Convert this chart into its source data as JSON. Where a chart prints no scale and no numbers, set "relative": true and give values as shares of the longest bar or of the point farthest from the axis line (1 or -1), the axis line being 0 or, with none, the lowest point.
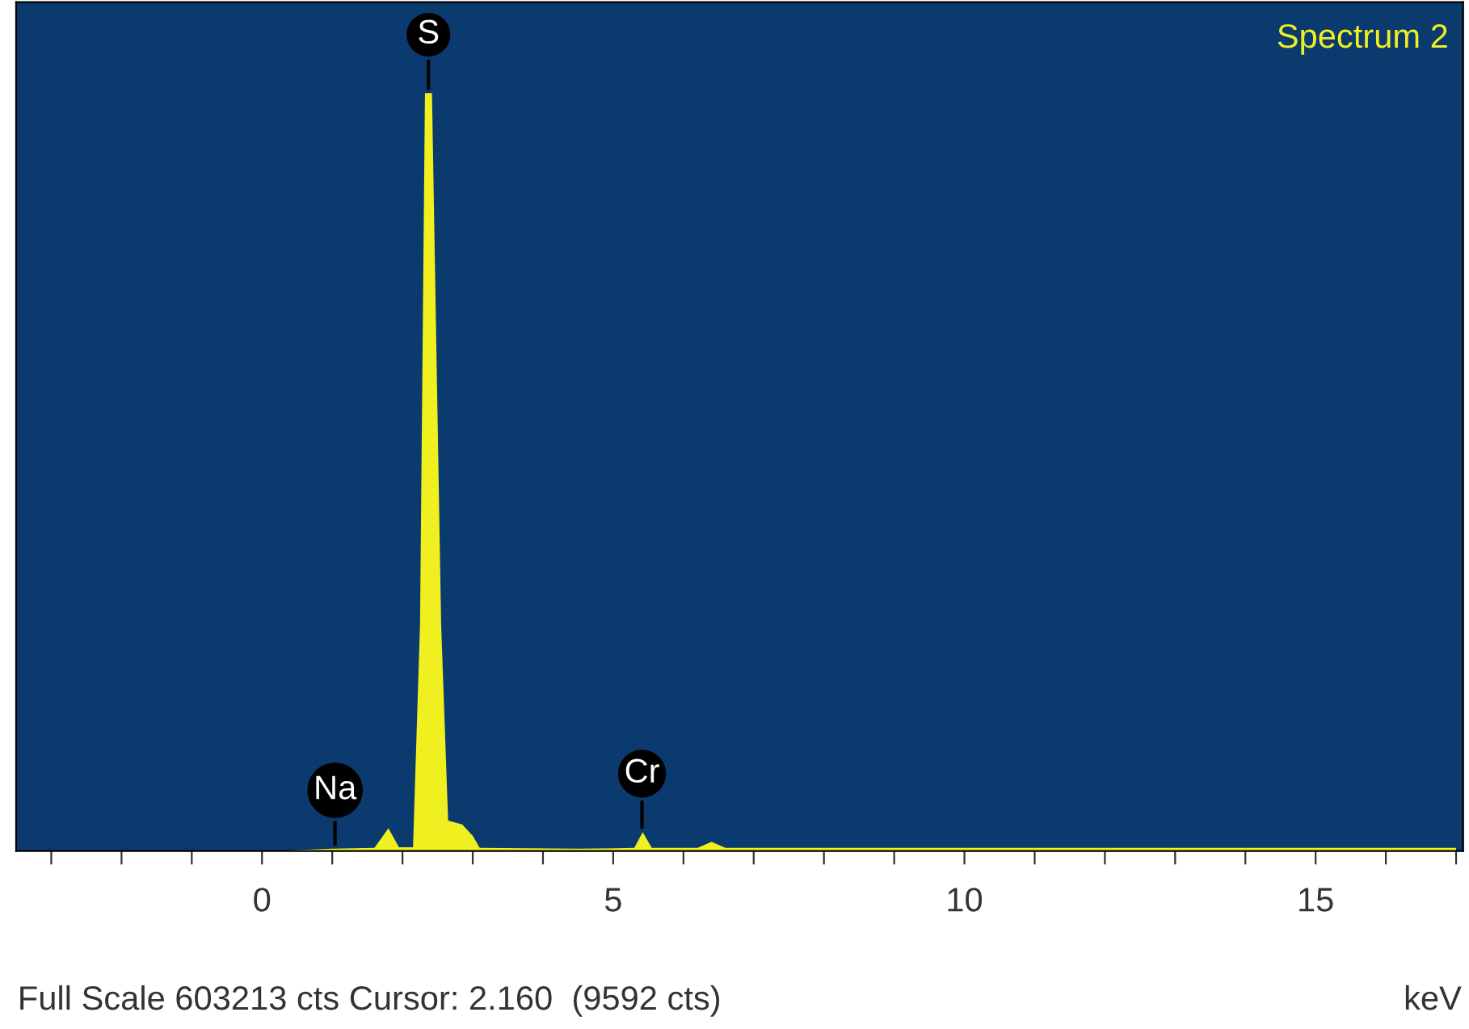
{
  "chart_data": {
    "type": "area",
    "title": "Spectrum 2",
    "xlabel": "keV",
    "relative": true,
    "x": [
      0.2,
      1.0,
      1.6,
      1.8,
      1.95,
      2.15,
      2.25,
      2.32,
      2.42,
      2.55,
      2.65,
      2.85,
      3.0,
      3.1,
      4.5,
      5.3,
      5.42,
      5.55,
      6.2,
      6.4,
      6.6,
      7.5,
      17.0
    ],
    "series": [
      {
        "color": "#f0f020",
        "values": [
          0,
          0.003,
          0.004,
          0.03,
          0.005,
          0.005,
          0.3,
          1.0,
          1.0,
          0.3,
          0.04,
          0.035,
          0.02,
          0.004,
          0.003,
          0.004,
          0.025,
          0.004,
          0.004,
          0.012,
          0.004,
          0.004,
          0.004
        ]
      }
    ],
    "xlim": [
      -3.5,
      17.1
    ],
    "xticks": [
      {
        "value": -3,
        "label": null
      },
      {
        "value": -2,
        "label": null
      },
      {
        "value": -1,
        "label": null
      },
      0,
      {
        "value": 1,
        "label": null
      },
      {
        "value": 2,
        "label": null
      },
      {
        "value": 3,
        "label": null
      },
      {
        "value": 4,
        "label": null
      },
      5,
      {
        "value": 6,
        "label": null
      },
      {
        "value": 7,
        "label": null
      },
      {
        "value": 8,
        "label": null
      },
      {
        "value": 9,
        "label": null
      },
      10,
      {
        "value": 11,
        "label": null
      },
      {
        "value": 12,
        "label": null
      },
      {
        "value": 13,
        "label": null
      },
      {
        "value": 14,
        "label": null
      },
      15,
      {
        "value": 16,
        "label": null
      },
      {
        "value": 17,
        "label": null
      }
    ],
    "annotations": [
      {
        "text": "S",
        "x": 2.37,
        "y": 1.0
      },
      {
        "text": "Na",
        "x": 1.04,
        "y": 0.003
      },
      {
        "text": "Cr",
        "x": 5.41,
        "y": 0.025
      },
      "Full Scale 603213 cts Cursor: 2.160  (9592 cts)"
    ],
    "grid": false
  }
}
